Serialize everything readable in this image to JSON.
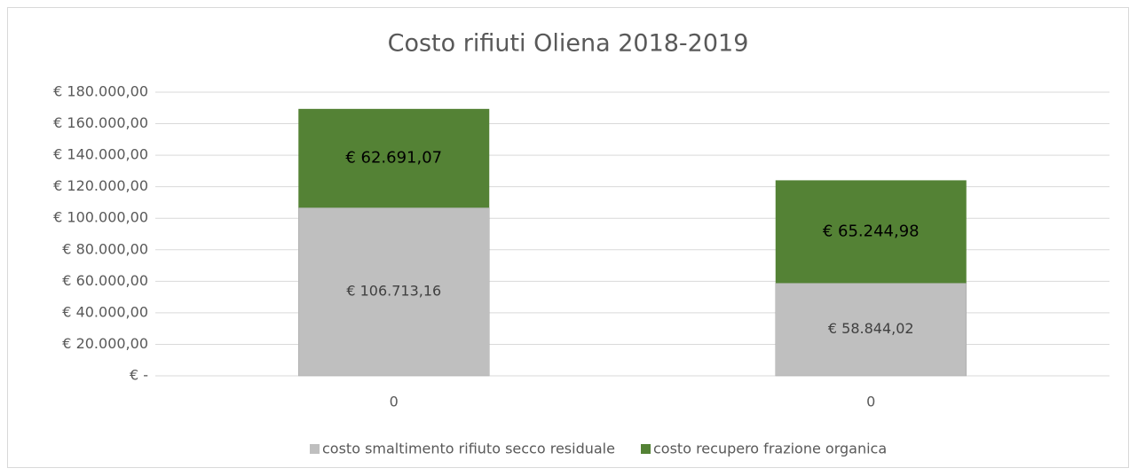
{
  "chart_data": {
    "type": "stacked_bar",
    "title": "Costo rifiuti Oliena 2018-2019",
    "categories": [
      "0",
      "0"
    ],
    "series": [
      {
        "name": "costo smaltimento rifiuto secco residuale",
        "color": "#bfbfbf",
        "values": [
          106713.16,
          58844.02
        ],
        "value_labels": [
          "€ 106.713,16",
          "€ 58.844,02"
        ]
      },
      {
        "name": "costo recupero frazione organica",
        "color": "#548235",
        "values": [
          62691.07,
          65244.98
        ],
        "value_labels": [
          "€ 62.691,07",
          "€ 65.244,98"
        ]
      }
    ],
    "ylim": [
      0,
      180000
    ],
    "yticks": [
      {
        "value": 0,
        "label": "€ -"
      },
      {
        "value": 20000,
        "label": "€ 20.000,00"
      },
      {
        "value": 40000,
        "label": "€ 40.000,00"
      },
      {
        "value": 60000,
        "label": "€ 60.000,00"
      },
      {
        "value": 80000,
        "label": "€ 80.000,00"
      },
      {
        "value": 100000,
        "label": "€ 100.000,00"
      },
      {
        "value": 120000,
        "label": "€ 120.000,00"
      },
      {
        "value": 140000,
        "label": "€ 140.000,00"
      },
      {
        "value": 160000,
        "label": "€ 160.000,00"
      },
      {
        "value": 180000,
        "label": "€ 180.000,00"
      }
    ],
    "grid": true,
    "legend": "bottom"
  }
}
